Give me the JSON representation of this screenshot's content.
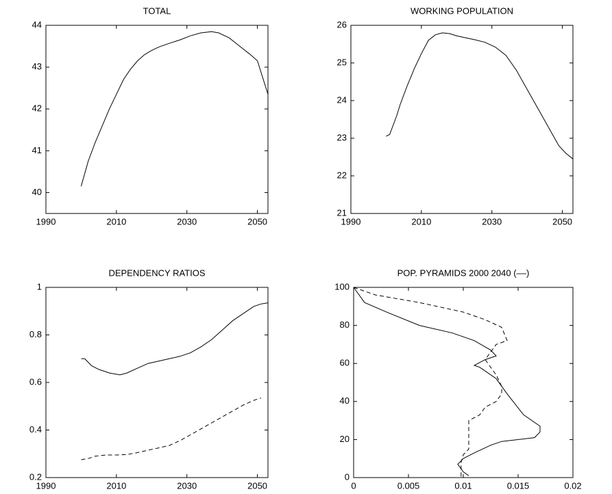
{
  "chart_data": [
    {
      "type": "line",
      "title": "TOTAL",
      "x": [
        2000,
        2002,
        2004,
        2006,
        2008,
        2010,
        2012,
        2014,
        2016,
        2018,
        2020,
        2022,
        2025,
        2028,
        2031,
        2034,
        2037,
        2039,
        2042,
        2045,
        2048,
        2050,
        2053
      ],
      "values": [
        40.15,
        40.75,
        41.2,
        41.6,
        42.0,
        42.35,
        42.7,
        42.95,
        43.15,
        43.3,
        43.4,
        43.48,
        43.57,
        43.65,
        43.75,
        43.82,
        43.85,
        43.82,
        43.7,
        43.5,
        43.3,
        43.15,
        42.35
      ],
      "color": "#000000",
      "xlim": [
        1990,
        2053
      ],
      "ylim": [
        39.5,
        44
      ],
      "xticks": [
        1990,
        2010,
        2030,
        2050
      ],
      "yticks": [
        40,
        41,
        42,
        43,
        44
      ]
    },
    {
      "type": "line",
      "title": "WORKING POPULATION",
      "x": [
        2000,
        2001,
        2003,
        2004,
        2006,
        2008,
        2010,
        2012,
        2014,
        2016,
        2018,
        2020,
        2022,
        2025,
        2028,
        2031,
        2034,
        2037,
        2040,
        2043,
        2046,
        2049,
        2051,
        2053
      ],
      "values": [
        23.05,
        23.1,
        23.6,
        23.9,
        24.4,
        24.85,
        25.25,
        25.6,
        25.75,
        25.8,
        25.78,
        25.72,
        25.68,
        25.62,
        25.55,
        25.42,
        25.2,
        24.8,
        24.3,
        23.8,
        23.3,
        22.8,
        22.6,
        22.45
      ],
      "color": "#000000",
      "xlim": [
        1990,
        2053
      ],
      "ylim": [
        21,
        26
      ],
      "xticks": [
        1990,
        2010,
        2030,
        2050
      ],
      "yticks": [
        21,
        22,
        23,
        24,
        25,
        26
      ]
    },
    {
      "type": "line",
      "title": "DEPENDENCY RATIOS",
      "series": [
        {
          "x": [
            2000,
            2001,
            2003,
            2005,
            2008,
            2011,
            2013,
            2016,
            2019,
            2022,
            2025,
            2028,
            2031,
            2034,
            2037,
            2040,
            2043,
            2046,
            2049,
            2051,
            2053
          ],
          "values": [
            0.7,
            0.7,
            0.67,
            0.655,
            0.64,
            0.632,
            0.64,
            0.66,
            0.68,
            0.69,
            0.7,
            0.71,
            0.725,
            0.75,
            0.78,
            0.82,
            0.86,
            0.89,
            0.92,
            0.93,
            0.935
          ],
          "color": "#000000",
          "linestyle": "solid"
        },
        {
          "x": [
            2000,
            2002,
            2004,
            2007,
            2010,
            2013,
            2016,
            2019,
            2022,
            2025,
            2028,
            2031,
            2034,
            2037,
            2040,
            2043,
            2046,
            2049,
            2051
          ],
          "values": [
            0.275,
            0.28,
            0.29,
            0.295,
            0.295,
            0.297,
            0.305,
            0.315,
            0.325,
            0.335,
            0.355,
            0.38,
            0.405,
            0.43,
            0.455,
            0.48,
            0.505,
            0.525,
            0.535
          ],
          "color": "#000000",
          "linestyle": "dashed"
        }
      ],
      "xlim": [
        1990,
        2053
      ],
      "ylim": [
        0.2,
        1
      ],
      "xticks": [
        1990,
        2010,
        2030,
        2050
      ],
      "yticks": [
        0.2,
        0.4,
        0.6,
        0.8,
        1
      ]
    },
    {
      "type": "line",
      "title": "POP. PYRAMIDS 2000 2040 (––)",
      "series": [
        {
          "x": [
            0,
            0.001,
            0.003,
            0.006,
            0.009,
            0.011,
            0.0125,
            0.013,
            0.012,
            0.011,
            0.0115,
            0.012,
            0.013,
            0.0135,
            0.014,
            0.0155,
            0.017,
            0.017,
            0.0165,
            0.0135,
            0.0125,
            0.011,
            0.01,
            0.0095,
            0.01,
            0.0105
          ],
          "values": [
            100,
            92,
            87,
            80,
            76,
            72,
            67,
            64,
            62,
            59,
            58,
            56,
            52,
            48,
            44,
            33,
            27,
            24,
            21,
            19,
            17,
            13,
            10,
            7,
            3,
            1
          ],
          "color": "#000000",
          "linestyle": "solid"
        },
        {
          "x": [
            0,
            0.002,
            0.006,
            0.01,
            0.012,
            0.0135,
            0.014,
            0.013,
            0.0125,
            0.012,
            0.0125,
            0.013,
            0.0135,
            0.0135,
            0.013,
            0.012,
            0.0115,
            0.0105,
            0.0105,
            0.0105,
            0.0105,
            0.01,
            0.0098,
            0.0098,
            0.0098
          ],
          "values": [
            100,
            96,
            92,
            87,
            83,
            79,
            72,
            70,
            66,
            62,
            58,
            54,
            48,
            44,
            40,
            37,
            33,
            30,
            25,
            21,
            15,
            12,
            8,
            5,
            0
          ],
          "color": "#000000",
          "linestyle": "dashed"
        }
      ],
      "xlim": [
        0,
        0.02
      ],
      "ylim": [
        0,
        100
      ],
      "xticks": [
        0,
        0.005,
        0.01,
        0.015,
        0.02
      ],
      "yticks": [
        0,
        20,
        40,
        60,
        80,
        100
      ]
    }
  ]
}
